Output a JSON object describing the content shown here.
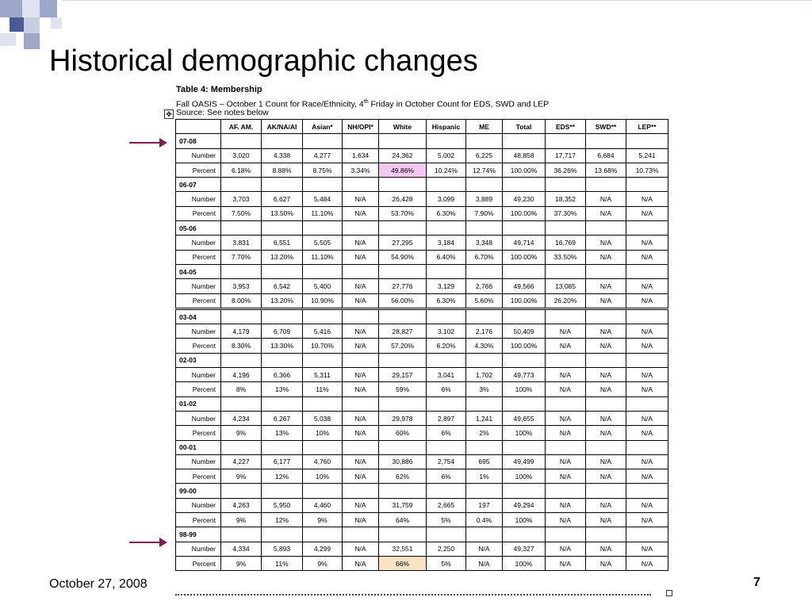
{
  "slide": {
    "title": "Historical demographic changes",
    "footer_date": "October 27, 2008",
    "page_number": "7"
  },
  "table_header": {
    "title": "Table 4: Membership",
    "subtitle_pre": "Fall OASIS – October 1 Count for Race/Ethnicity, 4",
    "subtitle_sup": "th",
    "subtitle_post": " Friday in October Count for EDS, SWD and LEP",
    "source": "Source: See notes below"
  },
  "columns": [
    "AF. AM.",
    "AK/NA/AI",
    "Asian*",
    "NH/OPI*",
    "White",
    "Hispanic",
    "ME",
    "Total",
    "EDS**",
    "SWD**",
    "LEP**"
  ],
  "years": [
    {
      "label": "07-08",
      "number": [
        "3,020",
        "4,338",
        "4,277",
        "1,634",
        "24,362",
        "5,002",
        "6,225",
        "48,858",
        "17,717",
        "6,684",
        "5,241"
      ],
      "percent": [
        "6.18%",
        "8.88%",
        "8.75%",
        "3.34%",
        "49.86%",
        "10.24%",
        "12.74%",
        "100.00%",
        "36.26%",
        "13.68%",
        "10.73%"
      ]
    },
    {
      "label": "06-07",
      "number": [
        "3,703",
        "6,627",
        "5,484",
        "N/A",
        "26,428",
        "3,099",
        "3,889",
        "49,230",
        "18,352",
        "N/A",
        "N/A"
      ],
      "percent": [
        "7.50%",
        "13.50%",
        "11.10%",
        "N/A",
        "53.70%",
        "6.30%",
        "7.90%",
        "100.00%",
        "37.30%",
        "N/A",
        "N/A"
      ]
    },
    {
      "label": "05-06",
      "number": [
        "3,831",
        "6,551",
        "5,505",
        "N/A",
        "27,295",
        "3,184",
        "3,348",
        "49,714",
        "16,769",
        "N/A",
        "N/A"
      ],
      "percent": [
        "7.70%",
        "13.20%",
        "11.10%",
        "N/A",
        "54.90%",
        "6.40%",
        "6.70%",
        "100.00%",
        "33.50%",
        "N/A",
        "N/A"
      ]
    },
    {
      "label": "04-05",
      "number": [
        "3,953",
        "6,542",
        "5,400",
        "N/A",
        "27,776",
        "3,129",
        "2,766",
        "49,566",
        "13,085",
        "N/A",
        "N/A"
      ],
      "percent": [
        "8.00%",
        "13.20%",
        "10.90%",
        "N/A",
        "56.00%",
        "6.30%",
        "5.60%",
        "100.00%",
        "26.20%",
        "N/A",
        "N/A"
      ]
    },
    {
      "label": "03-04",
      "number": [
        "4,179",
        "6,709",
        "5,416",
        "N/A",
        "28,827",
        "3,102",
        "2,176",
        "50,409",
        "N/A",
        "N/A",
        "N/A"
      ],
      "percent": [
        "8.30%",
        "13.30%",
        "10.70%",
        "N/A",
        "57.20%",
        "6.20%",
        "4.30%",
        "100.00%",
        "N/A",
        "N/A",
        "N/A"
      ]
    },
    {
      "label": "02-03",
      "number": [
        "4,196",
        "6,366",
        "5,311",
        "N/A",
        "29,157",
        "3,041",
        "1,702",
        "49,773",
        "N/A",
        "N/A",
        "N/A"
      ],
      "percent": [
        "8%",
        "13%",
        "11%",
        "N/A",
        "59%",
        "6%",
        "3%",
        "100%",
        "N/A",
        "N/A",
        "N/A"
      ]
    },
    {
      "label": "01-02",
      "number": [
        "4,234",
        "6,267",
        "5,038",
        "N/A",
        "29,978",
        "2,897",
        "1,241",
        "49,655",
        "N/A",
        "N/A",
        "N/A"
      ],
      "percent": [
        "9%",
        "13%",
        "10%",
        "N/A",
        "60%",
        "6%",
        "2%",
        "100%",
        "N/A",
        "N/A",
        "N/A"
      ]
    },
    {
      "label": "00-01",
      "number": [
        "4,227",
        "6,177",
        "4,760",
        "N/A",
        "30,886",
        "2,754",
        "695",
        "49,499",
        "N/A",
        "N/A",
        "N/A"
      ],
      "percent": [
        "9%",
        "12%",
        "10%",
        "N/A",
        "62%",
        "6%",
        "1%",
        "100%",
        "N/A",
        "N/A",
        "N/A"
      ]
    },
    {
      "label": "99-00",
      "number": [
        "4,263",
        "5,950",
        "4,460",
        "N/A",
        "31,759",
        "2,665",
        "197",
        "49,294",
        "N/A",
        "N/A",
        "N/A"
      ],
      "percent": [
        "9%",
        "12%",
        "9%",
        "N/A",
        "64%",
        "5%",
        "0.4%",
        "100%",
        "N/A",
        "N/A",
        "N/A"
      ]
    },
    {
      "label": "98-99",
      "number": [
        "4,334",
        "5,893",
        "4,299",
        "N/A",
        "32,551",
        "2,250",
        "N/A",
        "49,327",
        "N/A",
        "N/A",
        "N/A"
      ],
      "percent": [
        "9%",
        "11%",
        "9%",
        "N/A",
        "66%",
        "5%",
        "N/A",
        "100%",
        "N/A",
        "N/A",
        "N/A"
      ]
    }
  ],
  "row_labels": {
    "number": "Number",
    "percent": "Percent"
  },
  "highlights": {
    "pink": "#f3c7f0",
    "peach": "#fbe2c4",
    "arrow": "#7a2050"
  }
}
